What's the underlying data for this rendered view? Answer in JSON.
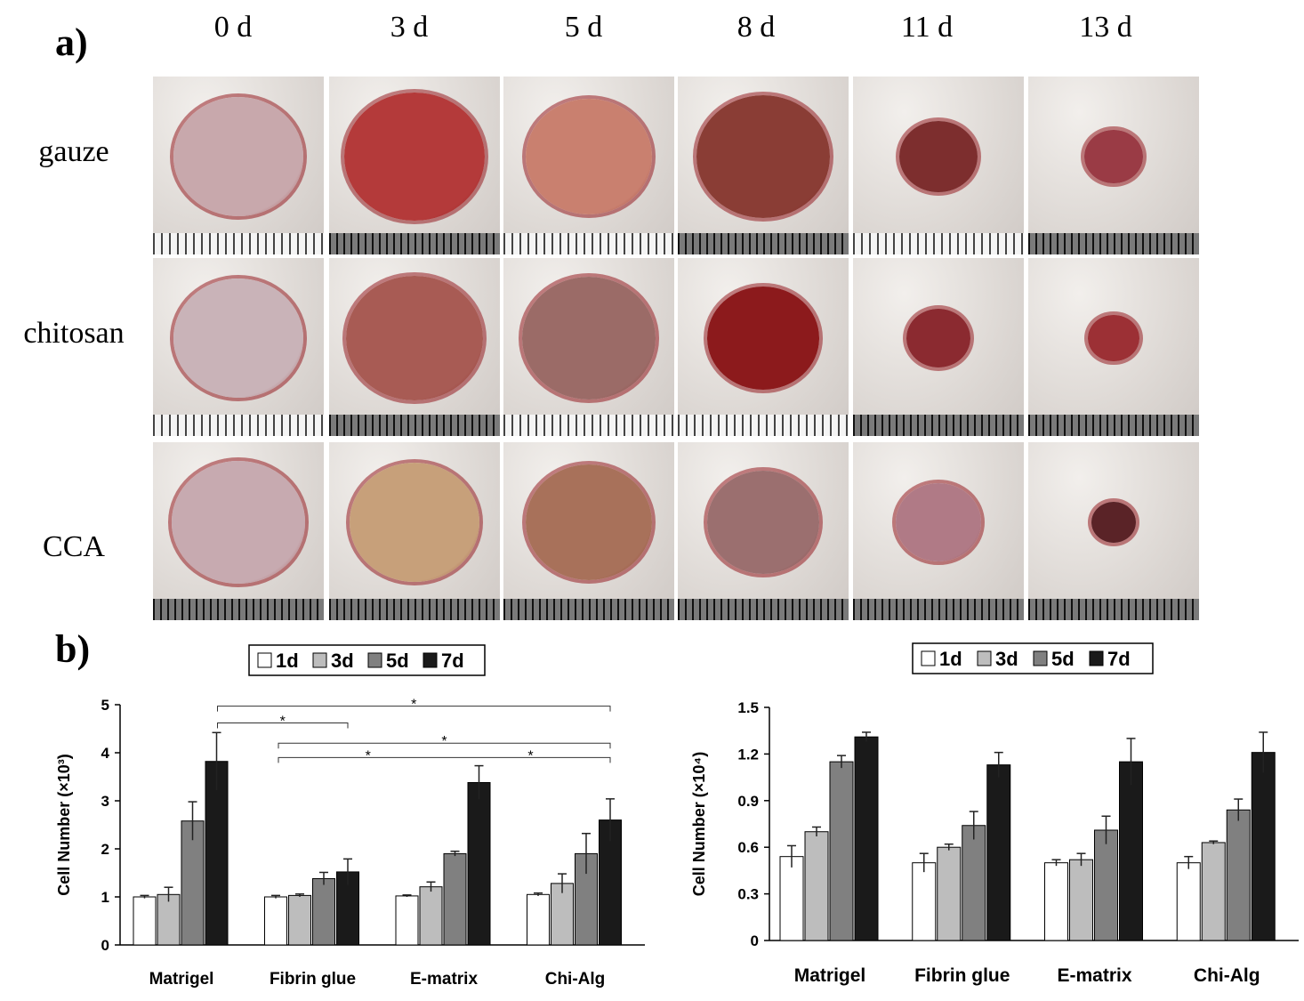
{
  "panel_a": {
    "label": "a)",
    "days": [
      "0 d",
      "3 d",
      "5 d",
      "8 d",
      "11 d",
      "13 d"
    ],
    "rows": [
      "gauze",
      "chitosan",
      "CCA"
    ]
  },
  "panel_b": {
    "label": "b)"
  },
  "chart_data": [
    {
      "type": "bar",
      "categories": [
        "Matrigel",
        "Fibrin glue",
        "E-matrix",
        "Chi-Alg"
      ],
      "ylabel": "Cell Number (×10³)",
      "ylim": [
        0,
        5
      ],
      "yticks": [
        0,
        1,
        2,
        3,
        4,
        5
      ],
      "legend": [
        "1d",
        "3d",
        "5d",
        "7d"
      ],
      "legend_position": "top",
      "series": [
        {
          "name": "1d",
          "color": "#ffffff",
          "values": [
            1.0,
            1.0,
            1.02,
            1.05
          ],
          "errors": [
            0.03,
            0.03,
            0.02,
            0.03
          ]
        },
        {
          "name": "3d",
          "color": "#bdbdbd",
          "values": [
            1.05,
            1.03,
            1.21,
            1.28
          ],
          "errors": [
            0.15,
            0.03,
            0.1,
            0.2
          ]
        },
        {
          "name": "5d",
          "color": "#808080",
          "values": [
            2.58,
            1.38,
            1.9,
            1.9
          ],
          "errors": [
            0.4,
            0.13,
            0.05,
            0.42
          ]
        },
        {
          "name": "7d",
          "color": "#1a1a1a",
          "values": [
            3.82,
            1.52,
            3.38,
            2.6
          ],
          "errors": [
            0.6,
            0.27,
            0.35,
            0.44
          ]
        }
      ],
      "significance": [
        {
          "from": 0,
          "to": 3,
          "y": 4.97,
          "label": "*"
        },
        {
          "from": 0,
          "to": 1,
          "y": 4.62,
          "label": "*"
        },
        {
          "from": 1,
          "to": 3,
          "y": 4.2,
          "label": "*"
        },
        {
          "from": 1,
          "to": 3,
          "y": 3.9,
          "label": "*",
          "label2": "*"
        }
      ]
    },
    {
      "type": "bar",
      "categories": [
        "Matrigel",
        "Fibrin glue",
        "E-matrix",
        "Chi-Alg"
      ],
      "ylabel": "Cell Number (×10⁴)",
      "ylim": [
        0,
        1.5
      ],
      "yticks": [
        "0",
        "0.3",
        "0.6",
        "0.9",
        "1.2",
        "1.5"
      ],
      "legend": [
        "1d",
        "3d",
        "5d",
        "7d"
      ],
      "legend_position": "top",
      "series": [
        {
          "name": "1d",
          "color": "#ffffff",
          "values": [
            0.54,
            0.5,
            0.5,
            0.5
          ],
          "errors": [
            0.07,
            0.06,
            0.02,
            0.04
          ]
        },
        {
          "name": "3d",
          "color": "#bdbdbd",
          "values": [
            0.7,
            0.6,
            0.52,
            0.63
          ],
          "errors": [
            0.03,
            0.02,
            0.04,
            0.01
          ]
        },
        {
          "name": "5d",
          "color": "#808080",
          "values": [
            1.15,
            0.74,
            0.71,
            0.84
          ],
          "errors": [
            0.04,
            0.09,
            0.09,
            0.07
          ]
        },
        {
          "name": "7d",
          "color": "#1a1a1a",
          "values": [
            1.31,
            1.13,
            1.15,
            1.21
          ],
          "errors": [
            0.03,
            0.08,
            0.15,
            0.13
          ]
        }
      ]
    }
  ]
}
